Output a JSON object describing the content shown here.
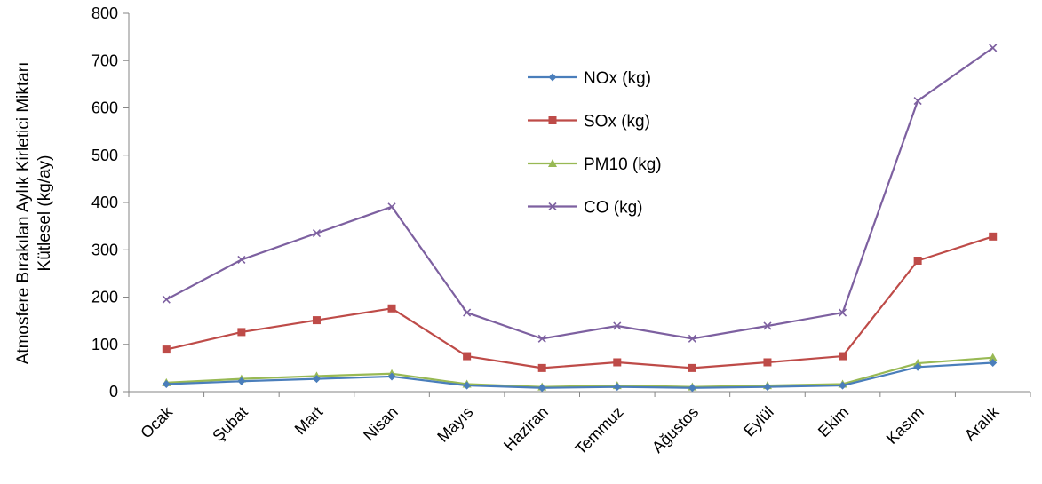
{
  "chart_data": {
    "type": "line",
    "title": "",
    "xlabel": "",
    "ylabel": [
      "Atmosfere Bırakılan Aylık Kirletici Miktarı",
      "Kütlesel (kg/ay)"
    ],
    "ylim": [
      0,
      800
    ],
    "yticks": [
      0,
      100,
      200,
      300,
      400,
      500,
      600,
      700,
      800
    ],
    "grid": false,
    "legend_position": "center-right",
    "categories": [
      "Ocak",
      "Şubat",
      "Mart",
      "Nisan",
      "Mayıs",
      "Haziran",
      "Temmuz",
      "Ağustos",
      "Eylül",
      "Ekim",
      "Kasım",
      "Aralık"
    ],
    "series": [
      {
        "name": "NOx (kg)",
        "color": "#4a7ebb",
        "marker": "diamond",
        "values": [
          16,
          22,
          27,
          32,
          13,
          8,
          10,
          8,
          10,
          13,
          52,
          61
        ]
      },
      {
        "name": "SOx (kg)",
        "color": "#be4b48",
        "marker": "square",
        "values": [
          89,
          126,
          151,
          176,
          75,
          50,
          62,
          50,
          62,
          75,
          277,
          328
        ]
      },
      {
        "name": "PM10 (kg)",
        "color": "#98b954",
        "marker": "triangle",
        "values": [
          19,
          27,
          33,
          38,
          16,
          10,
          13,
          10,
          13,
          16,
          60,
          72
        ]
      },
      {
        "name": "CO (kg)",
        "color": "#7d60a0",
        "marker": "x",
        "values": [
          195,
          279,
          335,
          391,
          167,
          112,
          139,
          112,
          139,
          167,
          615,
          727
        ]
      }
    ]
  }
}
